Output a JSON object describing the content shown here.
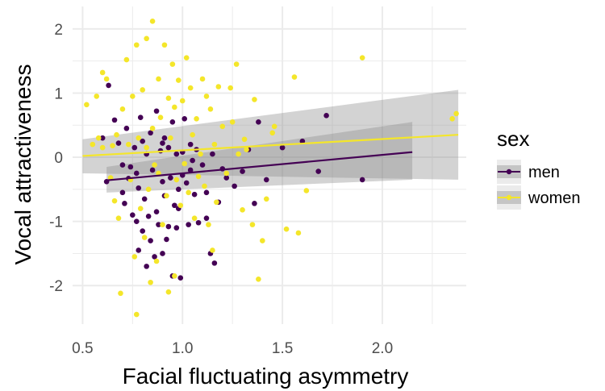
{
  "chart_data": {
    "type": "scatter",
    "title": "",
    "xlabel": "Facial fluctuating asymmetry",
    "ylabel": "Vocal attractiveness",
    "xlim": [
      0.45,
      2.42
    ],
    "ylim": [
      -2.6,
      2.35
    ],
    "x_ticks": [
      0.5,
      1.0,
      1.5,
      2.0
    ],
    "x_tick_labels": [
      "0.5",
      "1.0",
      "1.5",
      "2.0"
    ],
    "y_ticks": [
      -2,
      -1,
      0,
      1,
      2
    ],
    "y_tick_labels": [
      "-2",
      "-1",
      "0",
      "1",
      "2"
    ],
    "grid": true,
    "legend": {
      "title": "sex",
      "position": "right",
      "entries": [
        "men",
        "women"
      ]
    },
    "colors": {
      "men": "#440154",
      "women": "#f4e62a",
      "ribbon": "#8c8c8c",
      "grid": "#ebebeb"
    },
    "series": [
      {
        "name": "men",
        "color": "#440154",
        "trend": {
          "x": [
            0.62,
            2.15
          ],
          "y": [
            -0.36,
            0.08
          ],
          "ci_low": [
            -0.55,
            -0.35
          ],
          "ci_high": [
            -0.15,
            0.55
          ]
        },
        "points": [
          [
            0.62,
            -0.38
          ],
          [
            0.63,
            1.12
          ],
          [
            0.66,
            0.58
          ],
          [
            0.68,
            0.22
          ],
          [
            0.7,
            -0.12
          ],
          [
            0.71,
            -0.72
          ],
          [
            0.72,
            0.45
          ],
          [
            0.73,
            -0.33
          ],
          [
            0.74,
            -0.15
          ],
          [
            0.75,
            -0.9
          ],
          [
            0.76,
            0.15
          ],
          [
            0.77,
            -1.0
          ],
          [
            0.78,
            -1.45
          ],
          [
            0.78,
            -0.48
          ],
          [
            0.79,
            0.62
          ],
          [
            0.8,
            -1.15
          ],
          [
            0.8,
            0.25
          ],
          [
            0.81,
            -0.65
          ],
          [
            0.82,
            -1.7
          ],
          [
            0.82,
            0.05
          ],
          [
            0.83,
            -0.92
          ],
          [
            0.84,
            -1.3
          ],
          [
            0.84,
            0.38
          ],
          [
            0.85,
            -0.2
          ],
          [
            0.86,
            -1.55
          ],
          [
            0.87,
            0.72
          ],
          [
            0.87,
            -0.85
          ],
          [
            0.88,
            -1.05
          ],
          [
            0.89,
            0.1
          ],
          [
            0.9,
            -0.38
          ],
          [
            0.9,
            -1.5
          ],
          [
            0.91,
            0.3
          ],
          [
            0.91,
            -0.6
          ],
          [
            0.92,
            -1.28
          ],
          [
            0.93,
            0.15
          ],
          [
            0.93,
            -1.08
          ],
          [
            0.94,
            -0.32
          ],
          [
            0.95,
            -1.85
          ],
          [
            0.95,
            0.55
          ],
          [
            0.96,
            -0.75
          ],
          [
            0.97,
            0.05
          ],
          [
            0.97,
            -1.1
          ],
          [
            0.98,
            -0.5
          ],
          [
            0.99,
            -1.88
          ],
          [
            1.0,
            0.08
          ],
          [
            1.0,
            -0.28
          ],
          [
            1.01,
            0.6
          ],
          [
            1.02,
            -0.4
          ],
          [
            1.03,
            -1.05
          ],
          [
            1.04,
            0.2
          ],
          [
            1.05,
            -0.05
          ],
          [
            1.06,
            -0.58
          ],
          [
            1.07,
            0.12
          ],
          [
            1.08,
            -1.02
          ],
          [
            1.1,
            -0.12
          ],
          [
            1.12,
            -0.55
          ],
          [
            1.14,
            -1.5
          ],
          [
            1.15,
            0.05
          ],
          [
            1.16,
            -1.65
          ],
          [
            1.18,
            -0.7
          ],
          [
            1.2,
            -0.18
          ],
          [
            1.22,
            -0.32
          ],
          [
            1.26,
            -0.45
          ],
          [
            1.3,
            -0.22
          ],
          [
            1.33,
            0.12
          ],
          [
            1.36,
            -0.72
          ],
          [
            1.38,
            0.55
          ],
          [
            1.42,
            -0.35
          ],
          [
            1.5,
            0.15
          ],
          [
            1.6,
            0.25
          ],
          [
            1.68,
            -0.22
          ],
          [
            1.72,
            0.65
          ],
          [
            1.9,
            -0.35
          ],
          [
            0.6,
            0.3
          ],
          [
            0.7,
            -0.55
          ],
          [
            0.9,
            0.22
          ],
          [
            1.12,
            -0.95
          ],
          [
            0.77,
            -0.25
          ],
          [
            0.98,
            -0.8
          ],
          [
            1.04,
            -0.2
          ]
        ]
      },
      {
        "name": "women",
        "color": "#f4e62a",
        "trend": {
          "x": [
            0.5,
            2.38
          ],
          "y": [
            0.02,
            0.35
          ],
          "ci_low": [
            -0.25,
            -0.35
          ],
          "ci_high": [
            0.28,
            1.05
          ]
        },
        "points": [
          [
            0.52,
            0.82
          ],
          [
            0.55,
            0.2
          ],
          [
            0.58,
            0.3
          ],
          [
            0.6,
            1.32
          ],
          [
            0.62,
            1.22
          ],
          [
            0.64,
            -0.32
          ],
          [
            0.65,
            0.18
          ],
          [
            0.66,
            -0.68
          ],
          [
            0.67,
            0.35
          ],
          [
            0.68,
            -0.95
          ],
          [
            0.69,
            -2.12
          ],
          [
            0.7,
            0.75
          ],
          [
            0.72,
            1.52
          ],
          [
            0.73,
            0.2
          ],
          [
            0.74,
            -0.35
          ],
          [
            0.75,
            0.95
          ],
          [
            0.76,
            -1.55
          ],
          [
            0.77,
            1.75
          ],
          [
            0.77,
            -2.45
          ],
          [
            0.78,
            0.3
          ],
          [
            0.79,
            -0.8
          ],
          [
            0.8,
            1.05
          ],
          [
            0.81,
            -1.25
          ],
          [
            0.82,
            1.85
          ],
          [
            0.82,
            0.15
          ],
          [
            0.83,
            -0.5
          ],
          [
            0.84,
            -1.95
          ],
          [
            0.85,
            2.12
          ],
          [
            0.85,
            0.45
          ],
          [
            0.86,
            -0.12
          ],
          [
            0.87,
            -1.62
          ],
          [
            0.88,
            1.22
          ],
          [
            0.88,
            -0.25
          ],
          [
            0.89,
            0.62
          ],
          [
            0.9,
            -1.05
          ],
          [
            0.91,
            1.75
          ],
          [
            0.92,
            -0.6
          ],
          [
            0.93,
            0.92
          ],
          [
            0.93,
            -2.1
          ],
          [
            0.94,
            0.3
          ],
          [
            0.95,
            1.45
          ],
          [
            0.96,
            -1.85
          ],
          [
            0.96,
            0.78
          ],
          [
            0.97,
            -0.35
          ],
          [
            0.98,
            1.2
          ],
          [
            0.99,
            -0.75
          ],
          [
            1.0,
            0.88
          ],
          [
            1.01,
            -0.1
          ],
          [
            1.02,
            1.55
          ],
          [
            1.03,
            -0.55
          ],
          [
            1.04,
            1.08
          ],
          [
            1.05,
            0.35
          ],
          [
            1.06,
            -0.95
          ],
          [
            1.07,
            0.6
          ],
          [
            1.08,
            -0.3
          ],
          [
            1.09,
            0.05
          ],
          [
            1.1,
            1.22
          ],
          [
            1.11,
            -0.45
          ],
          [
            1.12,
            0.95
          ],
          [
            1.13,
            -1.05
          ],
          [
            1.14,
            0.75
          ],
          [
            1.15,
            -1.45
          ],
          [
            1.16,
            0.2
          ],
          [
            1.17,
            -0.7
          ],
          [
            1.18,
            1.1
          ],
          [
            1.2,
            0.48
          ],
          [
            1.22,
            -0.25
          ],
          [
            1.24,
            1.08
          ],
          [
            1.25,
            0.55
          ],
          [
            1.27,
            1.45
          ],
          [
            1.28,
            0.05
          ],
          [
            1.3,
            -0.82
          ],
          [
            1.31,
            0.28
          ],
          [
            1.32,
            0.12
          ],
          [
            1.35,
            -1.05
          ],
          [
            1.36,
            0.9
          ],
          [
            1.38,
            -1.9
          ],
          [
            1.4,
            -1.3
          ],
          [
            1.42,
            -0.65
          ],
          [
            1.46,
            0.48
          ],
          [
            1.52,
            -1.12
          ],
          [
            1.56,
            1.25
          ],
          [
            1.58,
            -1.18
          ],
          [
            1.62,
            -0.52
          ],
          [
            1.9,
            1.55
          ],
          [
            2.35,
            0.6
          ],
          [
            2.37,
            0.68
          ],
          [
            0.57,
            0.95
          ],
          [
            1.45,
            0.38
          ],
          [
            0.6,
            0.15
          ]
        ]
      }
    ]
  }
}
